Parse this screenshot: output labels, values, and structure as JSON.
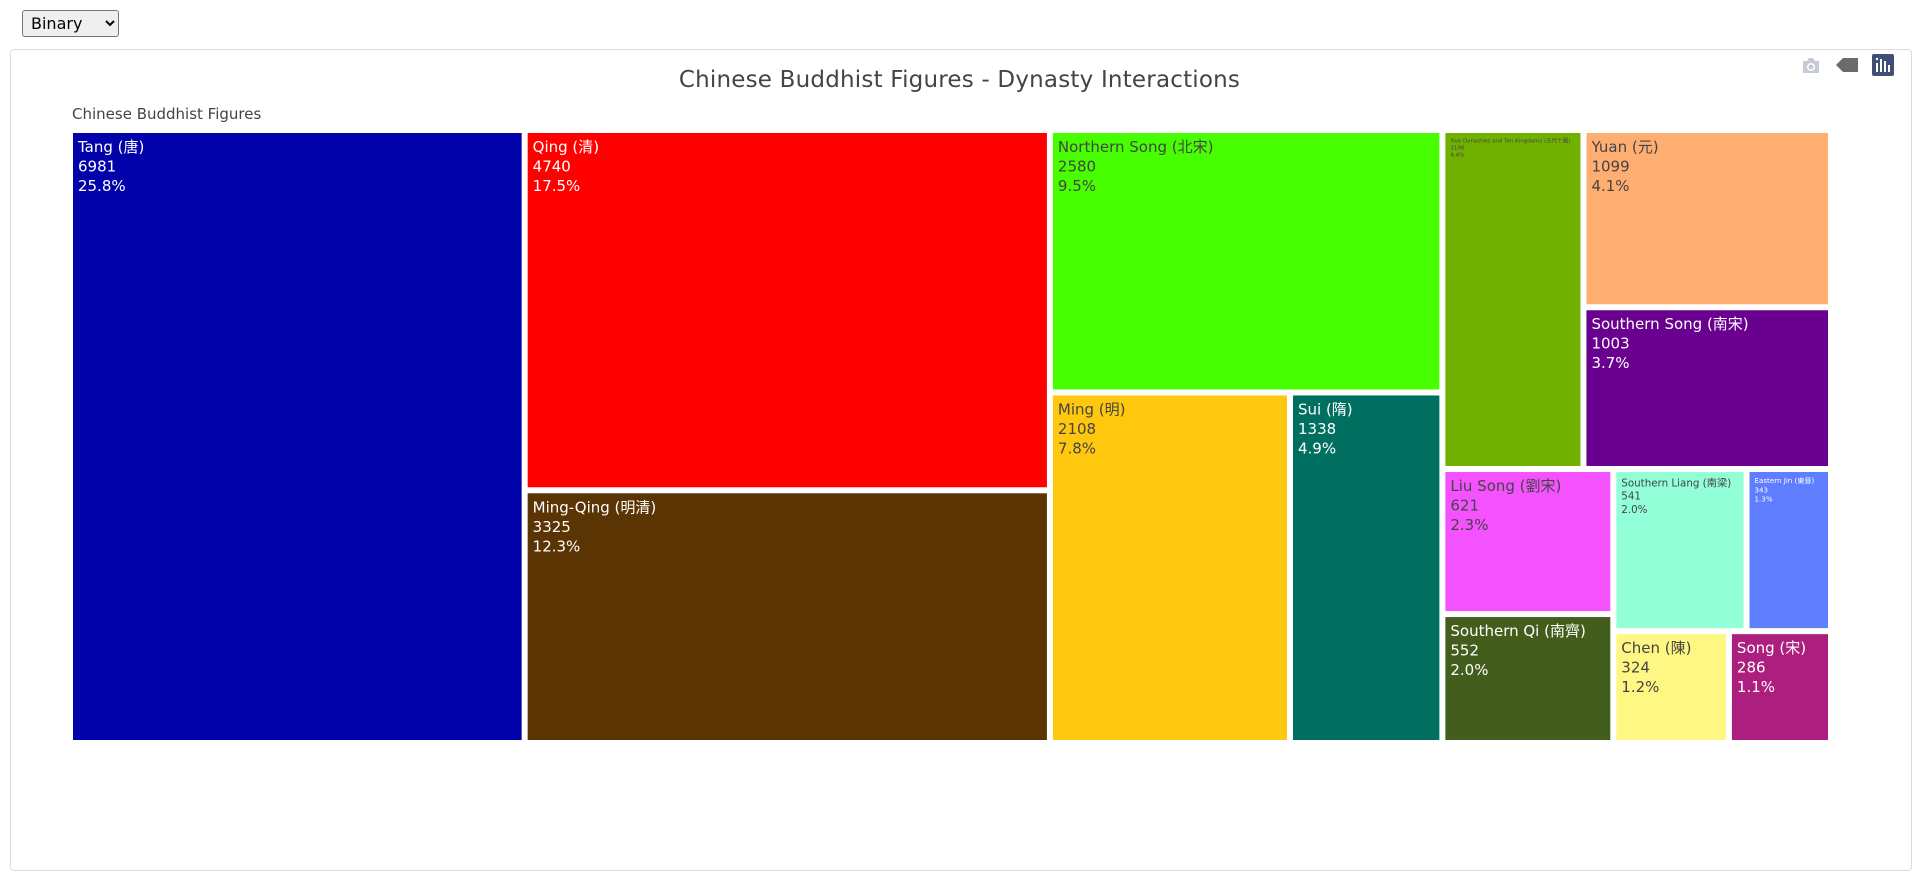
{
  "controls": {
    "mode_select": {
      "selected": "Binary",
      "options": [
        "Binary"
      ]
    }
  },
  "modebar": {
    "icons": [
      "camera-icon",
      "tag-icon",
      "plotly-logo-icon"
    ],
    "colors": {
      "icon": "#c5ccd6",
      "logo": "#3f4f75"
    }
  },
  "chart_data": {
    "type": "treemap",
    "title": "Chinese Buddhist Figures - Dynasty Interactions",
    "root": "Chinese Buddhist Figures",
    "nodes": [
      {
        "label": "Tang (唐)",
        "value": 6981,
        "percent": "25.8%",
        "color": "#0202aa",
        "text_color": "#ffffff"
      },
      {
        "label": "Qing (清)",
        "value": 4740,
        "percent": "17.5%",
        "color": "#ff0000",
        "text_color": "#ffffff"
      },
      {
        "label": "Ming-Qing (明清)",
        "value": 3325,
        "percent": "12.3%",
        "color": "#5b3403",
        "text_color": "#ffffff"
      },
      {
        "label": "Northern Song (北宋)",
        "value": 2580,
        "percent": "9.5%",
        "color": "#47ff00",
        "text_color": "#444444"
      },
      {
        "label": "Ming (明)",
        "value": 2108,
        "percent": "7.8%",
        "color": "#ffc80f",
        "text_color": "#444444"
      },
      {
        "label": "Sui (隋)",
        "value": 1338,
        "percent": "4.9%",
        "color": "#006f5f",
        "text_color": "#ffffff"
      },
      {
        "label": "Five Dynasties and Ten Kingdoms (五代十國)",
        "value": 1198,
        "percent": "4.4%",
        "color": "#71b200",
        "text_color": "#444444"
      },
      {
        "label": "Yuan (元)",
        "value": 1099,
        "percent": "4.1%",
        "color": "#ffae71",
        "text_color": "#444444"
      },
      {
        "label": "Southern Song (南宋)",
        "value": 1003,
        "percent": "3.7%",
        "color": "#6a0090",
        "text_color": "#ffffff"
      },
      {
        "label": "Liu Song (劉宋)",
        "value": 621,
        "percent": "2.3%",
        "color": "#f552ff",
        "text_color": "#444444"
      },
      {
        "label": "Southern Qi (南齊)",
        "value": 552,
        "percent": "2.0%",
        "color": "#435d1d",
        "text_color": "#ffffff"
      },
      {
        "label": "Southern Liang (南梁)",
        "value": 541,
        "percent": "2.0%",
        "color": "#92ffd8",
        "text_color": "#444444"
      },
      {
        "label": "Eastern Jin (東晉)",
        "value": 343,
        "percent": "1.3%",
        "color": "#5f7dff",
        "text_color": "#ffffff"
      },
      {
        "label": "Chen (陳)",
        "value": 324,
        "percent": "1.2%",
        "color": "#fff784",
        "text_color": "#444444"
      },
      {
        "label": "Song (宋)",
        "value": 286,
        "percent": "1.1%",
        "color": "#ad1f7e",
        "text_color": "#ffffff"
      }
    ]
  }
}
